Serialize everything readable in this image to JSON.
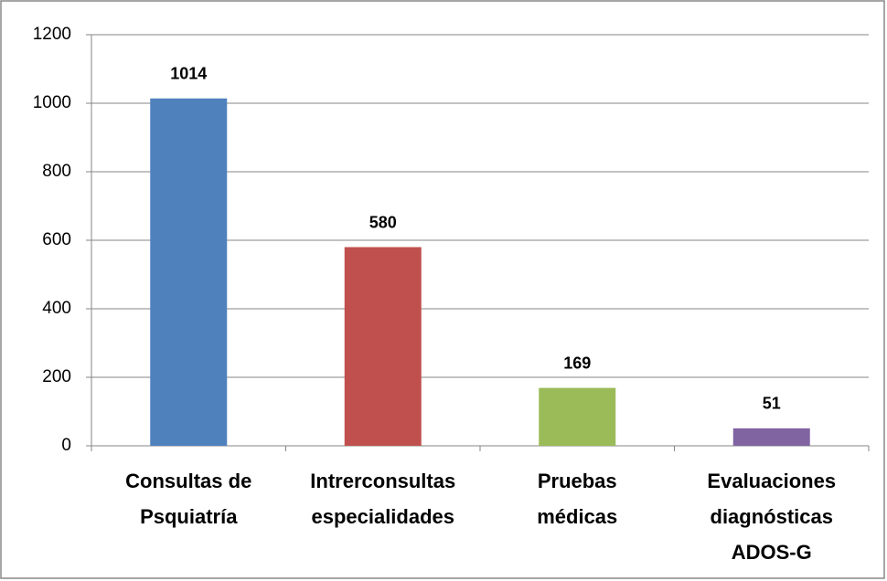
{
  "chart_data": {
    "type": "bar",
    "categories": [
      [
        "Consultas de",
        "Psquiatría"
      ],
      [
        "Intrerconsultas",
        "especialidades"
      ],
      [
        "Pruebas",
        "médicas"
      ],
      [
        "Evaluaciones",
        "diagnósticas",
        "ADOS-G"
      ]
    ],
    "values": [
      1014,
      580,
      169,
      51
    ],
    "colors": [
      "#4f81bd",
      "#c0504d",
      "#9bbb59",
      "#8064a2"
    ],
    "ylim": [
      0,
      1200
    ],
    "yticks": [
      0,
      200,
      400,
      600,
      800,
      1000,
      1200
    ],
    "grid": true
  }
}
